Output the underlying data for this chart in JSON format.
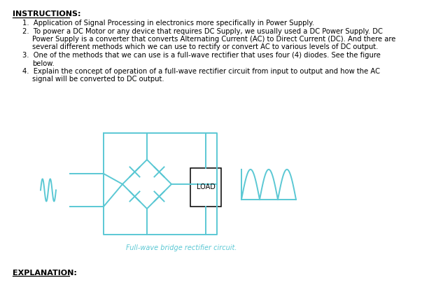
{
  "bg_color": "#ffffff",
  "text_color": "#000000",
  "circuit_color": "#5bc8d4",
  "title": "INSTRUCTIONS:",
  "load_label": "LOAD",
  "caption": "Full-wave bridge rectifier circuit.",
  "explanation_label": "EXPLANATION:"
}
